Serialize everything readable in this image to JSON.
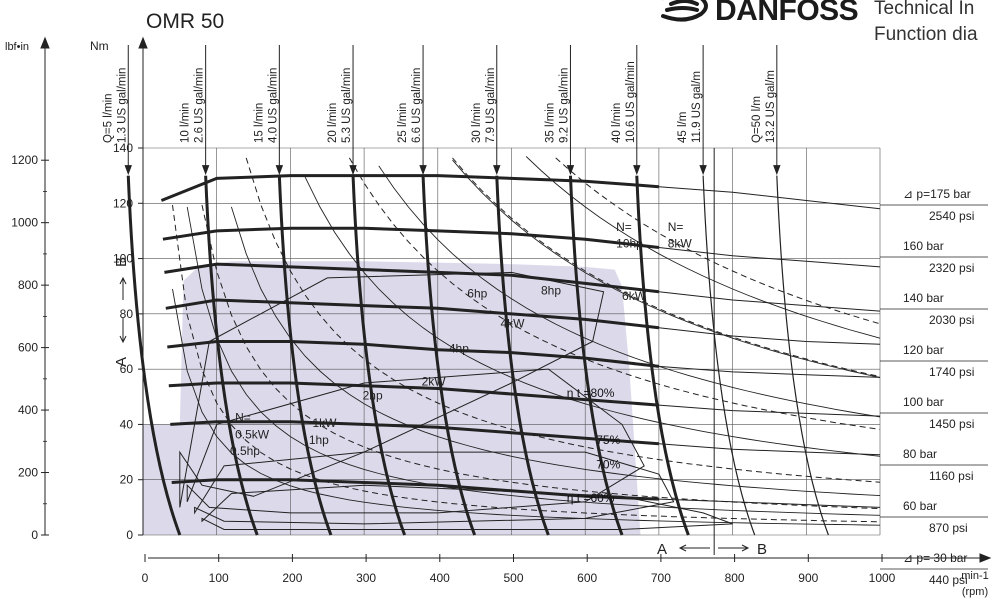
{
  "header": {
    "title": "OMR 50",
    "brand": "DANFOSS",
    "subtitle_line1": "Technical In",
    "subtitle_line2": "Function dia"
  },
  "chart_data": {
    "type": "line",
    "xlabel": "min-1",
    "xlabel_sub": "(rpm)",
    "ylabel_left_outer": "lbf•in",
    "ylabel_left_inner": "Nm",
    "xlim": [
      0,
      1000
    ],
    "ylim": [
      0,
      140
    ],
    "grid": true,
    "x_ticks": [
      0,
      100,
      200,
      300,
      400,
      500,
      600,
      700,
      800,
      900,
      1000
    ],
    "y_ticks": [
      0,
      20,
      40,
      60,
      80,
      100,
      120,
      140
    ],
    "outer_ticks": [
      0,
      200,
      400,
      600,
      800,
      1000,
      1200
    ],
    "y_outer_labels": [
      "0",
      "200",
      "400",
      "600",
      "800",
      "1000",
      "1200"
    ],
    "flow_labels": [
      {
        "lpm": "Q=5 l/min",
        "gpm": "1.3 US gal/min",
        "rpm": 80
      },
      {
        "lpm": "10 l/min",
        "gpm": "2.6 US gal/min",
        "rpm": 185
      },
      {
        "lpm": "15 l/min",
        "gpm": "4.0 US gal/min",
        "rpm": 285
      },
      {
        "lpm": "20 l/min",
        "gpm": "5.3 US gal/min",
        "rpm": 385
      },
      {
        "lpm": "25 l/min",
        "gpm": "6.6 US gal/min",
        "rpm": 480
      },
      {
        "lpm": "30 l/min",
        "gpm": "7.9 US gal/min",
        "rpm": 580
      },
      {
        "lpm": "35 l/min",
        "gpm": "9.2 US gal/min",
        "rpm": 680
      },
      {
        "lpm": "40 l/min",
        "gpm": "10.6 US gal/min",
        "rpm": 770
      },
      {
        "lpm": "45 l/m",
        "gpm": "11.9 US gal/m",
        "rpm": 860
      },
      {
        "lpm": "Q=50 l/m",
        "gpm": "13.2 US gal/m",
        "rpm": 960
      }
    ],
    "pressure_labels": [
      {
        "bar": "⊿ p=175 bar",
        "psi": "2540 psi"
      },
      {
        "bar": "160 bar",
        "psi": "2320 psi"
      },
      {
        "bar": "140 bar",
        "psi": "2030 psi"
      },
      {
        "bar": "120 bar",
        "psi": "1740 psi"
      },
      {
        "bar": "100 bar",
        "psi": "1450 psi"
      },
      {
        "bar": "80 bar",
        "psi": "1160 psi"
      },
      {
        "bar": "60 bar",
        "psi": "870 psi"
      },
      {
        "bar": "⊿ p= 30 bar",
        "psi": "440 psi"
      }
    ],
    "torque_curves": [
      {
        "torque": [
          121,
          129,
          130,
          130,
          130,
          129,
          128,
          126,
          124,
          121,
          118
        ]
      },
      {
        "torque": [
          107,
          110,
          111,
          111,
          110,
          109,
          107,
          104,
          101,
          99,
          97
        ]
      },
      {
        "torque": [
          95,
          98,
          97,
          96,
          95,
          94,
          91,
          88,
          85,
          83,
          81
        ]
      },
      {
        "torque": [
          82,
          85,
          84,
          83,
          82,
          80,
          78,
          75,
          72,
          70,
          69
        ]
      },
      {
        "torque": [
          68,
          70,
          70,
          69,
          67,
          66,
          64,
          61,
          59,
          58,
          57
        ]
      },
      {
        "torque": [
          54,
          55,
          55,
          54,
          53,
          51,
          49,
          47,
          45,
          44,
          43
        ]
      },
      {
        "torque": [
          40,
          41,
          41,
          40,
          39,
          37,
          35,
          33,
          31,
          30,
          29
        ]
      },
      {
        "torque": [
          19,
          20,
          20,
          19,
          18,
          16,
          14,
          13,
          12,
          11,
          10
        ]
      }
    ],
    "power_labels": [
      {
        "text": "N=",
        "rpm": 125,
        "torque": 41
      },
      {
        "text": "0.5kW",
        "rpm": 125,
        "torque": 35
      },
      {
        "text": "0.5hp",
        "rpm": 118,
        "torque": 29
      },
      {
        "text": "1kW",
        "rpm": 230,
        "torque": 39
      },
      {
        "text": "1hp",
        "rpm": 225,
        "torque": 33
      },
      {
        "text": "2hp",
        "rpm": 298,
        "torque": 49
      },
      {
        "text": "2kW",
        "rpm": 378,
        "torque": 54
      },
      {
        "text": "4hp",
        "rpm": 415,
        "torque": 66
      },
      {
        "text": "4kW",
        "rpm": 485,
        "torque": 75
      },
      {
        "text": "6hp",
        "rpm": 440,
        "torque": 86
      },
      {
        "text": "8hp",
        "rpm": 540,
        "torque": 87
      },
      {
        "text": "6kW",
        "rpm": 650,
        "torque": 85
      },
      {
        "text": "N=",
        "rpm": 642,
        "torque": 110
      },
      {
        "text": "10hp",
        "rpm": 642,
        "torque": 104
      },
      {
        "text": "N=",
        "rpm": 712,
        "torque": 110
      },
      {
        "text": "8kW",
        "rpm": 712,
        "torque": 104
      }
    ],
    "efficiency_labels": [
      {
        "text": "η t =80%",
        "rpm": 575,
        "torque": 50
      },
      {
        "text": "75%",
        "rpm": 615,
        "torque": 33
      },
      {
        "text": "70%",
        "rpm": 615,
        "torque": 24
      },
      {
        "text": "η t =60%",
        "rpm": 575,
        "torque": 12
      }
    ],
    "ab_markers": [
      {
        "text": "B",
        "side": "up"
      },
      {
        "text": "A",
        "side": "down"
      },
      {
        "text": "A",
        "side": "left"
      },
      {
        "text": "B",
        "side": "right"
      }
    ]
  }
}
